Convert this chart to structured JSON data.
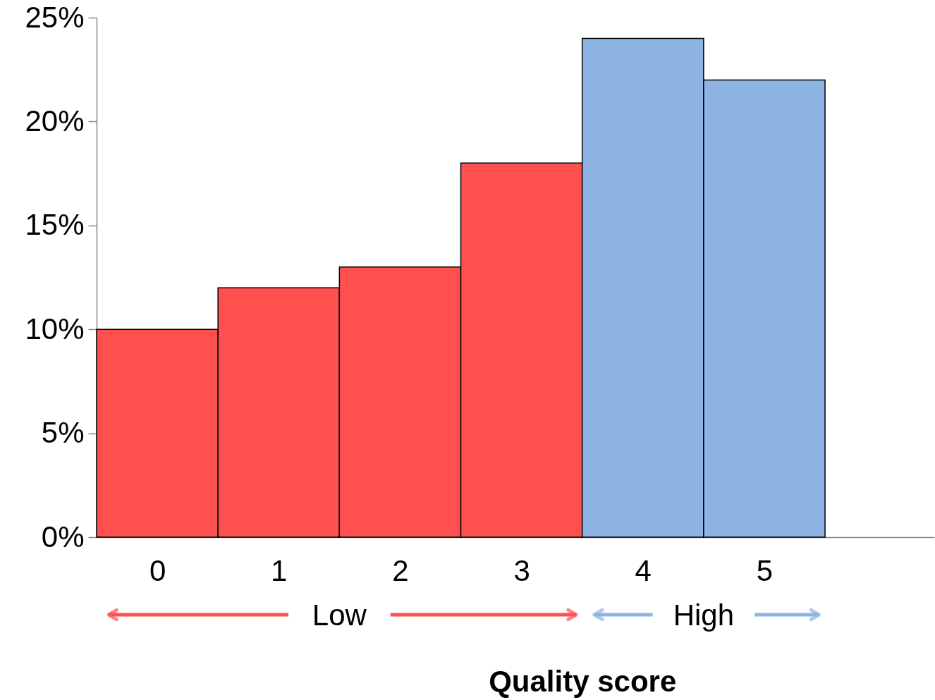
{
  "chart_data": {
    "type": "bar",
    "categories": [
      "0",
      "1",
      "2",
      "3",
      "4",
      "5"
    ],
    "values": [
      10,
      12,
      13,
      18,
      24,
      22
    ],
    "colors": [
      "#ff5050",
      "#ff5050",
      "#ff5050",
      "#ff5050",
      "#8eb4e3",
      "#8eb4e3"
    ],
    "xlabel": "Quality score",
    "annotations": [
      "Low",
      "High"
    ],
    "ylim": [
      0,
      25
    ],
    "yticks": [
      {
        "value": 0,
        "label": "0%"
      },
      {
        "value": 5,
        "label": "5%"
      },
      {
        "value": 10,
        "label": "10%"
      },
      {
        "value": 15,
        "label": "15%"
      },
      {
        "value": 20,
        "label": "20%"
      },
      {
        "value": 25,
        "label": "25%"
      }
    ],
    "grid": false
  }
}
